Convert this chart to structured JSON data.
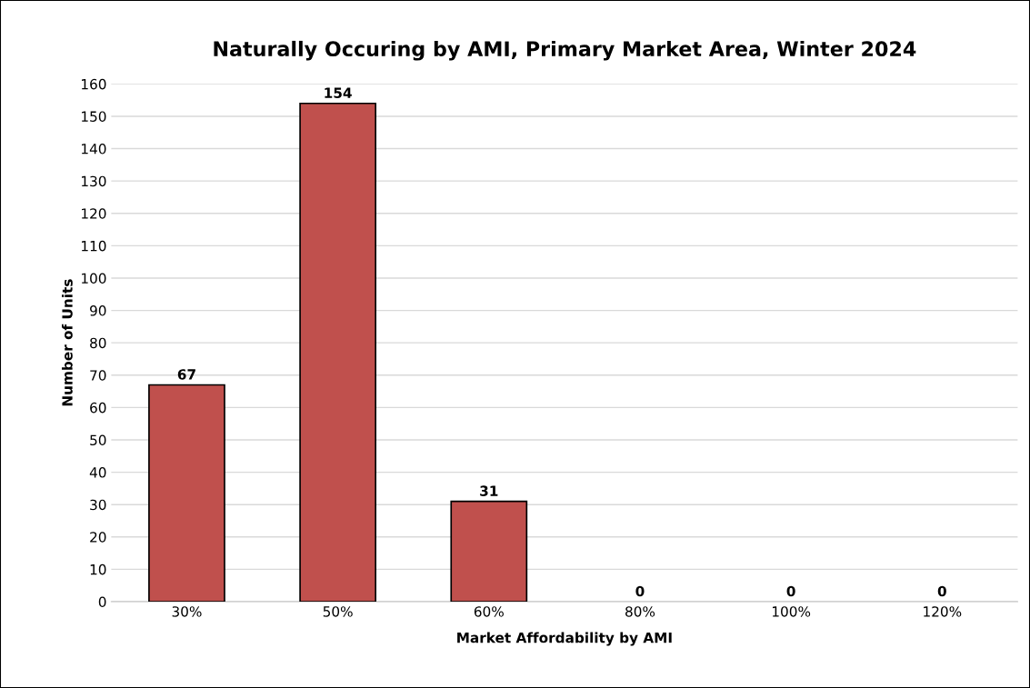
{
  "chart_data": {
    "type": "bar",
    "title": "Naturally Occuring by AMI, Primary Market Area, Winter 2024",
    "xlabel": "Market Affordability by AMI",
    "ylabel": "Number of Units",
    "categories": [
      "30%",
      "50%",
      "60%",
      "80%",
      "100%",
      "120%"
    ],
    "values": [
      67,
      154,
      31,
      0,
      0,
      0
    ],
    "color": "#c0504d",
    "ylim": [
      0,
      160
    ],
    "yticks": [
      0,
      10,
      20,
      30,
      40,
      50,
      60,
      70,
      80,
      90,
      100,
      110,
      120,
      130,
      140,
      150,
      160
    ],
    "grid": "y",
    "data_labels": true,
    "legend": false
  }
}
